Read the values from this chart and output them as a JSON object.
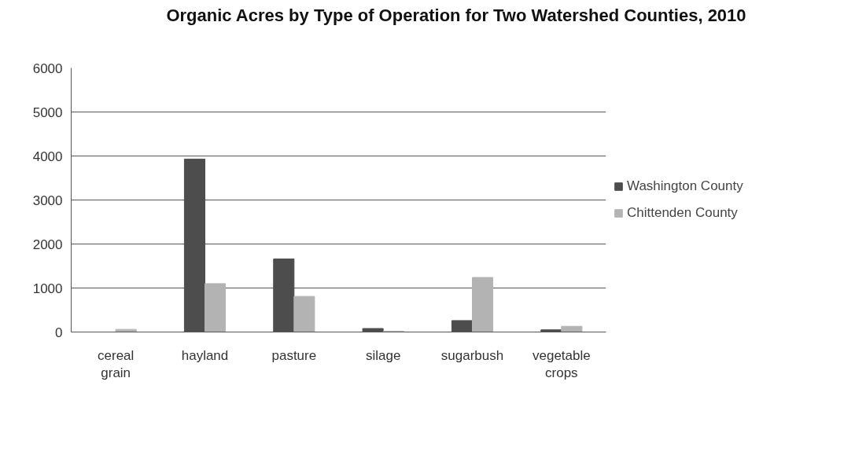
{
  "chart_data": {
    "type": "bar",
    "title": "Organic Acres by Type of Operation for Two Watershed Counties, 2010",
    "categories": [
      "cereal grain",
      "hayland",
      "pasture",
      "silage",
      "sugarbush",
      "vegetable crops"
    ],
    "series": [
      {
        "name": "Washington County",
        "color": "#4d4d4d",
        "values": [
          0,
          3930,
          1660,
          80,
          260,
          50
        ]
      },
      {
        "name": "Chittenden County",
        "color": "#b3b3b3",
        "values": [
          60,
          1100,
          810,
          20,
          1240,
          130
        ]
      }
    ],
    "ylim": [
      0,
      6000
    ],
    "yticks": [
      0,
      1000,
      2000,
      3000,
      4000,
      5000,
      6000
    ],
    "grid": "y",
    "legend": "right"
  }
}
